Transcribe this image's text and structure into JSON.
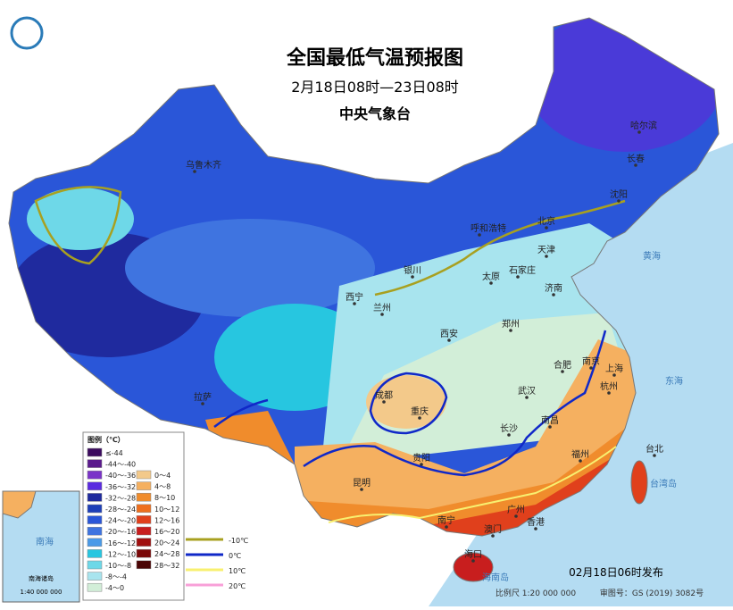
{
  "header": {
    "title": "全国最低气温预报图",
    "period": "2月18日08时—23日08时",
    "issuer": "中央气象台"
  },
  "legend": {
    "title": "图例（℃）",
    "items": [
      {
        "label": "≤-44",
        "color": "#3b0a5e"
      },
      {
        "label": "-44～-40",
        "color": "#5a1a8c"
      },
      {
        "label": "-40～-36",
        "color": "#7a33c8"
      },
      {
        "label": "-36～-32",
        "color": "#5a2ae0"
      },
      {
        "label": "-32～-28",
        "color": "#1f2a9e"
      },
      {
        "label": "-28～-24",
        "color": "#1e3fb8"
      },
      {
        "label": "-24～-20",
        "color": "#2a56d8"
      },
      {
        "label": "-20～-16",
        "color": "#3f74e0"
      },
      {
        "label": "-16～-12",
        "color": "#4a9ae8"
      },
      {
        "label": "-12～-10",
        "color": "#27c6e0"
      },
      {
        "label": "-10～-8",
        "color": "#6ed8e8"
      },
      {
        "label": "-8～-4",
        "color": "#a8e4ee"
      },
      {
        "label": "-4～0",
        "color": "#d2eed8"
      },
      {
        "label": "0～4",
        "color": "#f3c98a"
      },
      {
        "label": "4～8",
        "color": "#f5b060"
      },
      {
        "label": "8～10",
        "color": "#f08c2c"
      },
      {
        "label": "10～12",
        "color": "#ee6f1e"
      },
      {
        "label": "12～16",
        "color": "#e0401c"
      },
      {
        "label": "16～20",
        "color": "#c81e1e"
      },
      {
        "label": "20～24",
        "color": "#a01010"
      },
      {
        "label": "24～28",
        "color": "#7a0808"
      },
      {
        "label": "28～32",
        "color": "#4a0404"
      }
    ],
    "lines": [
      {
        "label": "-10℃",
        "color": "#a8a020"
      },
      {
        "label": "0℃",
        "color": "#1028c8"
      },
      {
        "label": "10℃",
        "color": "#f8f070"
      },
      {
        "label": "20℃",
        "color": "#f8a0d8"
      }
    ]
  },
  "cities": [
    "乌鲁木齐",
    "哈尔滨",
    "长春",
    "沈阳",
    "北京",
    "天津",
    "呼和浩特",
    "石家庄",
    "太原",
    "济南",
    "银川",
    "西宁",
    "兰州",
    "西安",
    "郑州",
    "合肥",
    "南京",
    "上海",
    "武汉",
    "杭州",
    "成都",
    "重庆",
    "拉萨",
    "长沙",
    "南昌",
    "贵阳",
    "福州",
    "台北",
    "昆明",
    "南宁",
    "广州",
    "澳门",
    "香港",
    "海口"
  ],
  "seas": [
    "黄海",
    "东海",
    "南海",
    "台湾岛",
    "海南岛"
  ],
  "inset": {
    "title": "南海诸岛",
    "scale": "1:40 000 000"
  },
  "footer": {
    "issued": "02月18日06时发布",
    "scale": "比例尺 1:20 000 000",
    "approval": "审图号：GS (2019) 3082号"
  }
}
